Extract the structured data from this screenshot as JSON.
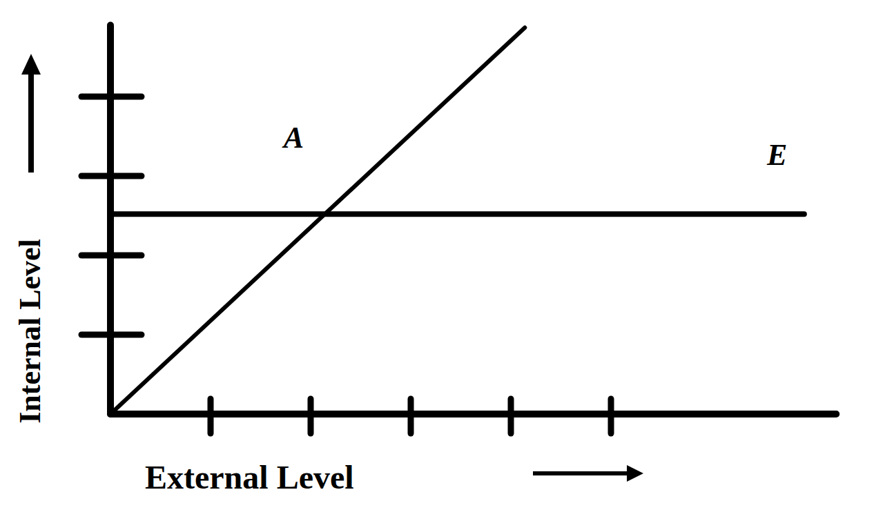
{
  "chart_data": {
    "type": "line",
    "x_label": "External Level",
    "y_label": "Internal Level",
    "xlim": [
      0,
      7.25
    ],
    "ylim": [
      0,
      4.9
    ],
    "xticks": [
      1,
      2,
      3,
      4,
      5
    ],
    "yticks": [
      1,
      2,
      3,
      4
    ],
    "tick_labels": false,
    "grid": false,
    "series": [
      {
        "color": "#000000",
        "x": [
          0,
          4.14
        ],
        "values": [
          0,
          4.87
        ]
      },
      {
        "color": "#000000",
        "x": [
          0,
          6.93
        ],
        "values": [
          2.52,
          2.52
        ]
      }
    ],
    "annotations": [
      {
        "text": "A",
        "x": 1.83,
        "y": 3.48
      },
      {
        "text": "E",
        "x": 6.66,
        "y": 3.26
      }
    ]
  }
}
